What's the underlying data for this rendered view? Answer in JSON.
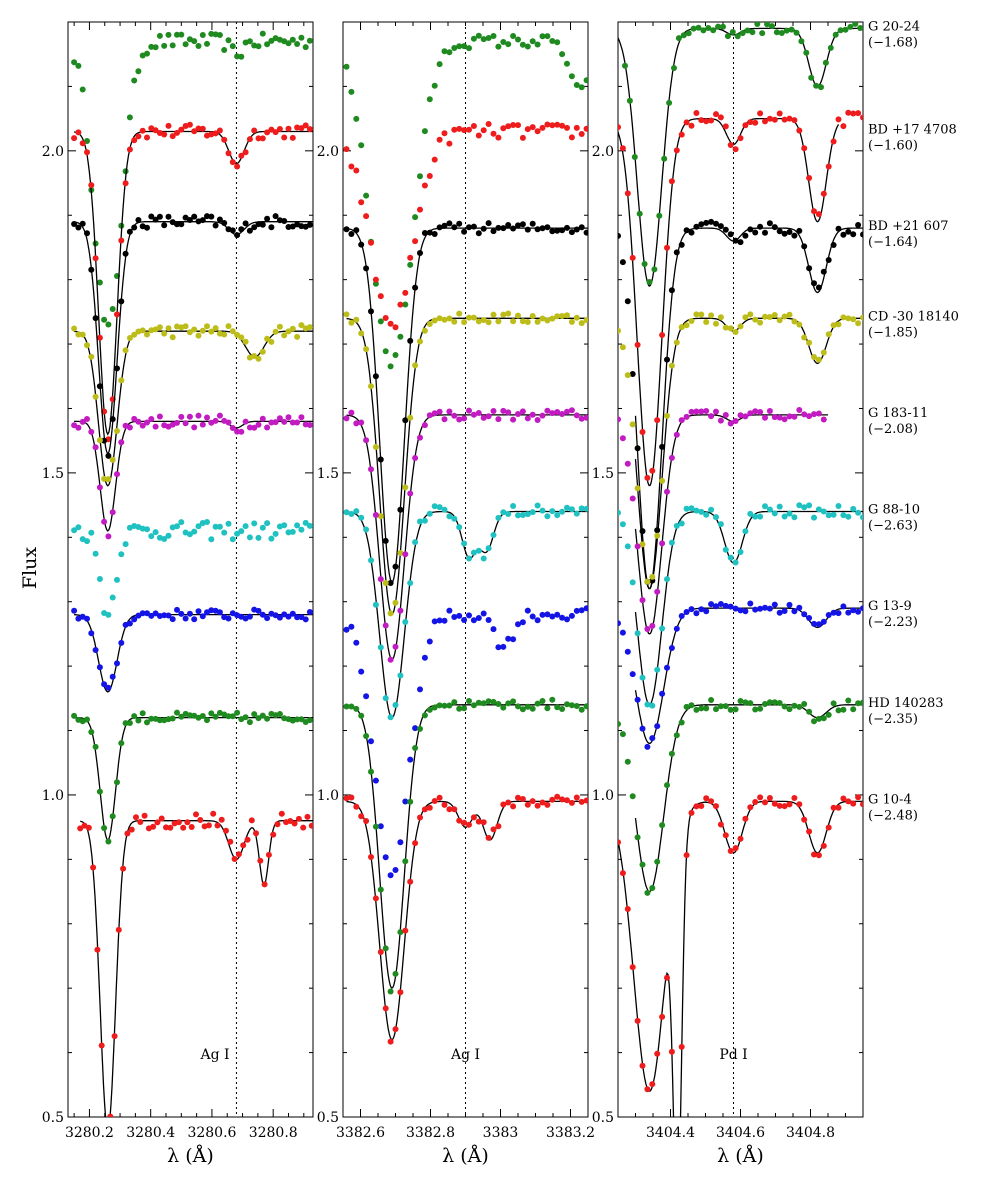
{
  "chart_data": {
    "type": "scatter",
    "ylabel": "Flux",
    "ylim": [
      0.5,
      2.2
    ],
    "yticks": [
      {
        "value": 0.5,
        "label": "0.5"
      },
      {
        "value": 1.0,
        "label": "1.0"
      },
      {
        "value": 1.5,
        "label": "1.5"
      },
      {
        "value": 2.0,
        "label": "2.0"
      }
    ],
    "stars": [
      {
        "name": "G 20-24",
        "feh": "(−1.68)",
        "color": "#1f8a1f"
      },
      {
        "name": "BD +17 4708",
        "feh": "(−1.60)",
        "color": "#ee1c1c"
      },
      {
        "name": "BD +21 607",
        "feh": "(−1.64)",
        "color": "#000000"
      },
      {
        "name": "CD -30 18140",
        "feh": "(−1.85)",
        "color": "#bdbd1a"
      },
      {
        "name": "G 183-11",
        "feh": "(−2.08)",
        "color": "#c21bc2"
      },
      {
        "name": "G 88-10",
        "feh": "(−2.63)",
        "color": "#1fc1c1"
      },
      {
        "name": "G 13-9",
        "feh": "(−2.23)",
        "color": "#1414e6"
      },
      {
        "name": "HD 140283",
        "feh": "(−2.35)",
        "color": "#1f8a1f"
      },
      {
        "name": "G 10-4",
        "feh": "(−2.48)",
        "color": "#ee1c1c"
      }
    ],
    "panels": [
      {
        "xlabel": "λ (Å)",
        "xlim": [
          3280.13,
          3280.93
        ],
        "xticks": [
          {
            "value": 3280.2,
            "label": "3280.2"
          },
          {
            "value": 3280.4,
            "label": "3280.4"
          },
          {
            "value": 3280.6,
            "label": "3280.6"
          },
          {
            "value": 3280.8,
            "label": "3280.8"
          }
        ],
        "line_wavelength": 3280.68,
        "annotation": "Ag I",
        "annotation_x": 3280.61,
        "annotation_y": 0.59,
        "spectra": [
          {
            "cont": 2.17,
            "step": 0.014,
            "x0": 3280.15,
            "x1": 3280.93,
            "noise": 0.012,
            "lines": [
              [
                3280.26,
                0.45,
                0.045
              ],
              [
                3280.68,
                0.02,
                0.02
              ]
            ],
            "model": false
          },
          {
            "cont": 2.03,
            "step": 0.014,
            "x0": 3280.15,
            "x1": 3280.93,
            "noise": 0.011,
            "lines": [
              [
                3280.26,
                0.47,
                0.03
              ],
              [
                3280.68,
                0.05,
                0.025
              ]
            ],
            "model": true,
            "model_x1": 3280.93
          },
          {
            "cont": 1.89,
            "step": 0.014,
            "x0": 3280.15,
            "x1": 3280.93,
            "noise": 0.01,
            "lines": [
              [
                3280.26,
                0.36,
                0.03
              ],
              [
                3280.68,
                0.02,
                0.025
              ]
            ],
            "model": true,
            "model_x1": 3280.93
          },
          {
            "cont": 1.72,
            "step": 0.014,
            "x0": 3280.15,
            "x1": 3280.93,
            "noise": 0.01,
            "lines": [
              [
                3280.26,
                0.24,
                0.03
              ],
              [
                3280.74,
                0.04,
                0.03
              ]
            ],
            "model": true,
            "model_x1": 3280.93
          },
          {
            "cont": 1.58,
            "step": 0.014,
            "x0": 3280.15,
            "x1": 3280.93,
            "noise": 0.01,
            "lines": [
              [
                3280.26,
                0.17,
                0.025
              ],
              [
                3280.68,
                0.01,
                0.02
              ]
            ],
            "model": true,
            "model_x1": 3280.93
          },
          {
            "cont": 1.41,
            "step": 0.014,
            "x0": 3280.15,
            "x1": 3280.93,
            "noise": 0.014,
            "lines": [
              [
                3280.26,
                0.13,
                0.025
              ]
            ],
            "model": false
          },
          {
            "cont": 1.28,
            "step": 0.014,
            "x0": 3280.15,
            "x1": 3280.93,
            "noise": 0.008,
            "lines": [
              [
                3280.26,
                0.12,
                0.03
              ]
            ],
            "model": true,
            "model_x1": 3280.93
          },
          {
            "cont": 1.12,
            "step": 0.014,
            "x0": 3280.15,
            "x1": 3280.93,
            "noise": 0.008,
            "lines": [
              [
                3280.26,
                0.19,
                0.025
              ]
            ],
            "model": true,
            "model_x1": 3280.93
          },
          {
            "cont": 0.96,
            "step": 0.014,
            "x0": 3280.17,
            "x1": 3280.93,
            "noise": 0.012,
            "lines": [
              [
                3280.26,
                0.48,
                0.025
              ],
              [
                3280.68,
                0.06,
                0.025
              ],
              [
                3280.77,
                0.1,
                0.015
              ]
            ],
            "model": true,
            "model_x1": 3280.93
          }
        ]
      },
      {
        "xlabel": "λ (Å)",
        "xlim": [
          3382.55,
          3383.25
        ],
        "xticks": [
          {
            "value": 3382.6,
            "label": "3382.6"
          },
          {
            "value": 3382.8,
            "label": "3382.8"
          },
          {
            "value": 3383.0,
            "label": "3383"
          },
          {
            "value": 3383.2,
            "label": "3383.2"
          }
        ],
        "line_wavelength": 3382.9,
        "annotation": "Ag I",
        "annotation_x": 3382.9,
        "annotation_y": 0.59,
        "spectra": [
          {
            "cont": 2.17,
            "step": 0.014,
            "x0": 3382.56,
            "x1": 3383.25,
            "noise": 0.01,
            "lines": [
              [
                3382.69,
                0.5,
                0.06
              ],
              [
                3383.23,
                0.08,
                0.03
              ]
            ],
            "model": false
          },
          {
            "cont": 2.03,
            "step": 0.014,
            "x0": 3382.56,
            "x1": 3383.25,
            "noise": 0.012,
            "lines": [
              [
                3382.69,
                0.3,
                0.06
              ]
            ],
            "model": false
          },
          {
            "cont": 1.88,
            "step": 0.014,
            "x0": 3382.56,
            "x1": 3383.25,
            "noise": 0.008,
            "lines": [
              [
                3382.69,
                0.55,
                0.035
              ]
            ],
            "model": true,
            "model_x1": 3383.25
          },
          {
            "cont": 1.74,
            "step": 0.014,
            "x0": 3382.56,
            "x1": 3383.25,
            "noise": 0.008,
            "lines": [
              [
                3382.69,
                0.46,
                0.035
              ]
            ],
            "model": true,
            "model_x1": 3383.25
          },
          {
            "cont": 1.59,
            "step": 0.014,
            "x0": 3382.56,
            "x1": 3383.25,
            "noise": 0.008,
            "lines": [
              [
                3382.69,
                0.38,
                0.035
              ]
            ],
            "model": true,
            "model_x1": 3383.25
          },
          {
            "cont": 1.44,
            "step": 0.014,
            "x0": 3382.56,
            "x1": 3383.25,
            "noise": 0.01,
            "lines": [
              [
                3382.69,
                0.32,
                0.035
              ],
              [
                3382.91,
                0.07,
                0.02
              ],
              [
                3382.96,
                0.06,
                0.02
              ]
            ],
            "model": true,
            "model_x1": 3383.25
          },
          {
            "cont": 1.28,
            "step": 0.014,
            "x0": 3382.56,
            "x1": 3383.25,
            "noise": 0.01,
            "lines": [
              [
                3382.69,
                0.4,
                0.05
              ],
              [
                3383.01,
                0.05,
                0.025
              ]
            ],
            "model": false
          },
          {
            "cont": 1.14,
            "step": 0.014,
            "x0": 3382.56,
            "x1": 3383.25,
            "noise": 0.008,
            "lines": [
              [
                3382.69,
                0.44,
                0.035
              ]
            ],
            "model": true,
            "model_x1": 3383.25
          },
          {
            "cont": 0.99,
            "step": 0.014,
            "x0": 3382.56,
            "x1": 3383.25,
            "noise": 0.01,
            "lines": [
              [
                3382.69,
                0.37,
                0.035
              ],
              [
                3382.9,
                0.04,
                0.02
              ],
              [
                3382.97,
                0.06,
                0.02
              ]
            ],
            "model": true,
            "model_x1": 3383.25
          }
        ]
      },
      {
        "xlabel": "λ (Å)",
        "xlim": [
          3404.25,
          3404.95
        ],
        "xticks": [
          {
            "value": 3404.4,
            "label": "3404.4"
          },
          {
            "value": 3404.6,
            "label": "3404.6"
          },
          {
            "value": 3404.8,
            "label": "3404.8"
          }
        ],
        "line_wavelength": 3404.58,
        "annotation": "Pd I",
        "annotation_x": 3404.58,
        "annotation_y": 0.59,
        "spectra": [
          {
            "cont": 2.19,
            "step": 0.014,
            "x0": 3404.27,
            "x1": 3404.95,
            "noise": 0.008,
            "lines": [
              [
                3404.34,
                0.4,
                0.035
              ],
              [
                3404.58,
                0.01,
                0.02
              ],
              [
                3404.82,
                0.09,
                0.025
              ]
            ],
            "model": true,
            "model_x0": 3404.25,
            "model_x1": 3404.95
          },
          {
            "cont": 2.05,
            "step": 0.014,
            "x0": 3404.25,
            "x1": 3404.95,
            "noise": 0.01,
            "lines": [
              [
                3404.34,
                0.57,
                0.035
              ],
              [
                3404.58,
                0.04,
                0.02
              ],
              [
                3404.82,
                0.16,
                0.025
              ]
            ],
            "model": true,
            "model_x0": 3404.25,
            "model_x1": 3404.88
          },
          {
            "cont": 1.88,
            "step": 0.014,
            "x0": 3404.25,
            "x1": 3404.95,
            "noise": 0.01,
            "lines": [
              [
                3404.34,
                0.56,
                0.035
              ],
              [
                3404.58,
                0.02,
                0.02
              ],
              [
                3404.82,
                0.1,
                0.025
              ]
            ],
            "model": true,
            "model_x0": 3404.3,
            "model_x1": 3404.95
          },
          {
            "cont": 1.74,
            "step": 0.014,
            "x0": 3404.25,
            "x1": 3404.95,
            "noise": 0.008,
            "lines": [
              [
                3404.34,
                0.42,
                0.035
              ],
              [
                3404.58,
                0.02,
                0.02
              ],
              [
                3404.82,
                0.07,
                0.025
              ]
            ],
            "model": true,
            "model_x0": 3404.3,
            "model_x1": 3404.95
          },
          {
            "cont": 1.59,
            "step": 0.014,
            "x0": 3404.25,
            "x1": 3404.85,
            "noise": 0.008,
            "lines": [
              [
                3404.34,
                0.34,
                0.035
              ],
              [
                3404.58,
                0.01,
                0.02
              ]
            ],
            "model": true,
            "model_x0": 3404.3,
            "model_x1": 3404.85
          },
          {
            "cont": 1.44,
            "step": 0.014,
            "x0": 3404.25,
            "x1": 3404.95,
            "noise": 0.01,
            "lines": [
              [
                3404.34,
                0.3,
                0.035
              ],
              [
                3404.58,
                0.08,
                0.025
              ]
            ],
            "model": true,
            "model_x0": 3404.3,
            "model_x1": 3404.95
          },
          {
            "cont": 1.29,
            "step": 0.014,
            "x0": 3404.25,
            "x1": 3404.95,
            "noise": 0.008,
            "lines": [
              [
                3404.34,
                0.21,
                0.04
              ],
              [
                3404.82,
                0.03,
                0.025
              ]
            ],
            "model": true,
            "model_x0": 3404.3,
            "model_x1": 3404.95
          },
          {
            "cont": 1.14,
            "step": 0.014,
            "x0": 3404.25,
            "x1": 3404.95,
            "noise": 0.008,
            "lines": [
              [
                3404.34,
                0.29,
                0.04
              ],
              [
                3404.82,
                0.02,
                0.025
              ]
            ],
            "model": true,
            "model_x0": 3404.3,
            "model_x1": 3404.95
          },
          {
            "cont": 0.99,
            "step": 0.014,
            "x0": 3404.25,
            "x1": 3404.95,
            "noise": 0.01,
            "lines": [
              [
                3404.34,
                0.45,
                0.045
              ],
              [
                3404.42,
                0.55,
                0.012
              ],
              [
                3404.58,
                0.08,
                0.025
              ],
              [
                3404.82,
                0.08,
                0.025
              ]
            ],
            "model": true,
            "model_x0": 3404.25,
            "model_x1": 3404.95
          }
        ]
      }
    ]
  }
}
